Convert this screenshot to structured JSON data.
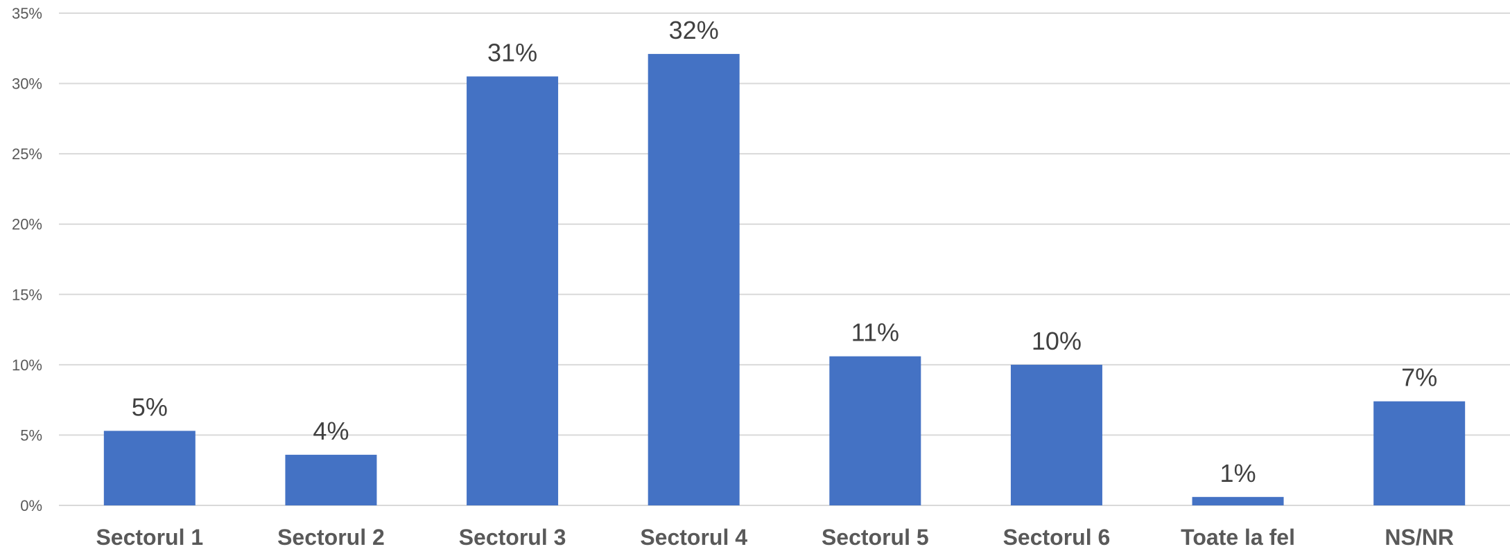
{
  "chart_data": {
    "type": "bar",
    "title": "",
    "xlabel": "",
    "ylabel": "",
    "categories": [
      "Sectorul 1",
      "Sectorul 2",
      "Sectorul 3",
      "Sectorul 4",
      "Sectorul 5",
      "Sectorul 6",
      "Toate la fel",
      "NS/NR"
    ],
    "values": [
      5.3,
      3.6,
      30.5,
      32.1,
      10.6,
      10.0,
      0.6,
      7.4
    ],
    "data_labels": [
      "5%",
      "4%",
      "31%",
      "32%",
      "11%",
      "10%",
      "1%",
      "7%"
    ],
    "ylim": [
      0,
      35
    ],
    "yticks": [
      0,
      5,
      10,
      15,
      20,
      25,
      30,
      35
    ],
    "ytick_labels": [
      "0%",
      "5%",
      "10%",
      "15%",
      "20%",
      "25%",
      "30%",
      "35%"
    ],
    "grid": true,
    "legend": "none",
    "bar_color": "#4472C4",
    "grid_color": "#D9D9D9"
  }
}
